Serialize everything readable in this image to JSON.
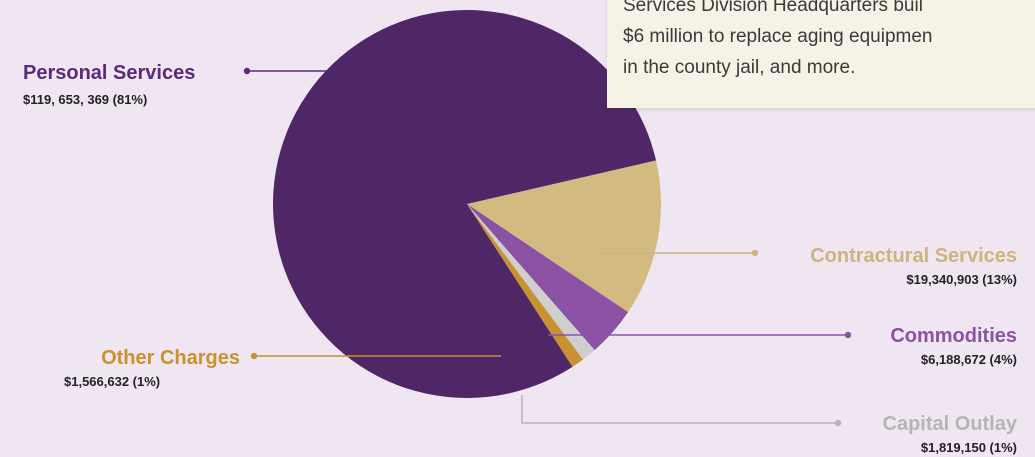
{
  "callout": {
    "lines": [
      "Services Division Headquarters buil",
      "$6 million to replace aging equipmen",
      "in the county jail, and more."
    ]
  },
  "chart_data": {
    "type": "pie",
    "title": "",
    "slices": [
      {
        "name": "Personal Services",
        "value_label": "$119, 653, 369 (81%)",
        "value": 119653369,
        "percent": 81,
        "color": "#4f2767",
        "label_color": "#5b2a7a"
      },
      {
        "name": "Contractural Services",
        "value_label": "$19,340,903 (13%)",
        "value": 19340903,
        "percent": 13,
        "color": "#d3ba80",
        "label_color": "#cdb47f"
      },
      {
        "name": "Commodities",
        "value_label": "$6,188,672 (4%)",
        "value": 6188672,
        "percent": 4,
        "color": "#8b52a4",
        "label_color": "#8b52a4"
      },
      {
        "name": "Capital Outlay",
        "value_label": "$1,819,150 (1%)",
        "value": 1819150,
        "percent": 1,
        "color": "#cfcfcf",
        "label_color": "#b5b5b5"
      },
      {
        "name": "Other Charges",
        "value_label": "$1,566,632 (1%)",
        "value": 1566632,
        "percent": 1,
        "color": "#c89230",
        "label_color": "#c8922e"
      }
    ]
  }
}
